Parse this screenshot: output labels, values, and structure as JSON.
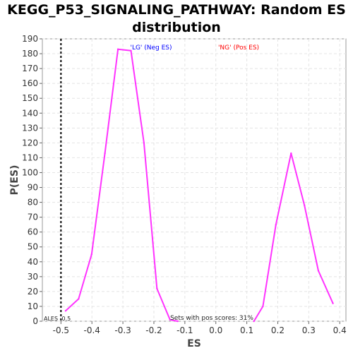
{
  "chart_data": {
    "type": "line",
    "title": "KEGG_P53_SIGNALING_PATHWAY: Random ES distribution",
    "xlabel": "ES",
    "ylabel": "P(ES)",
    "xlim": [
      -0.56,
      0.42
    ],
    "ylim": [
      0,
      190
    ],
    "x_ticks": [
      -0.5,
      -0.4,
      -0.3,
      -0.2,
      -0.1,
      0.0,
      0.1,
      0.2,
      0.3,
      0.4
    ],
    "x_tick_labels": [
      "-0.5",
      "-0.4",
      "-0.3",
      "-0.2",
      "-0.1",
      "0.0",
      "0.1",
      "0.2",
      "0.3",
      "0.4"
    ],
    "y_ticks": [
      0,
      10,
      20,
      30,
      40,
      50,
      60,
      70,
      80,
      90,
      100,
      110,
      120,
      130,
      140,
      150,
      160,
      170,
      180,
      190
    ],
    "y_tick_labels": [
      "0",
      "10",
      "20",
      "30",
      "40",
      "50",
      "60",
      "70",
      "80",
      "90",
      "100",
      "110",
      "120",
      "130",
      "140",
      "150",
      "160",
      "170",
      "180",
      "190"
    ],
    "grid": true,
    "series": [
      {
        "color": "#ff33ff",
        "segments": [
          {
            "x": [
              -0.485,
              -0.443,
              -0.401,
              -0.358,
              -0.316,
              -0.274,
              -0.232,
              -0.19,
              -0.148,
              -0.123
            ],
            "y": [
              7,
              15,
              45,
              113,
              183,
              182,
              120,
              22,
              1,
              0
            ]
          },
          {
            "x": [
              0.123,
              0.152,
              0.194,
              0.243,
              0.286,
              0.331,
              0.378
            ],
            "y": [
              0,
              10,
              65,
              113,
              78,
              34,
              12
            ]
          }
        ]
      }
    ],
    "actual_es": -0.5,
    "actual_es_label": "ALES -0.5",
    "annotations": {
      "neg_label": "'LG' (Neg ES)",
      "neg_color": "#0000ff",
      "pos_label": "'NG' (Pos ES)",
      "pos_color": "#ff0000",
      "pos_scores": "Sets with pos scores: 31%"
    }
  }
}
